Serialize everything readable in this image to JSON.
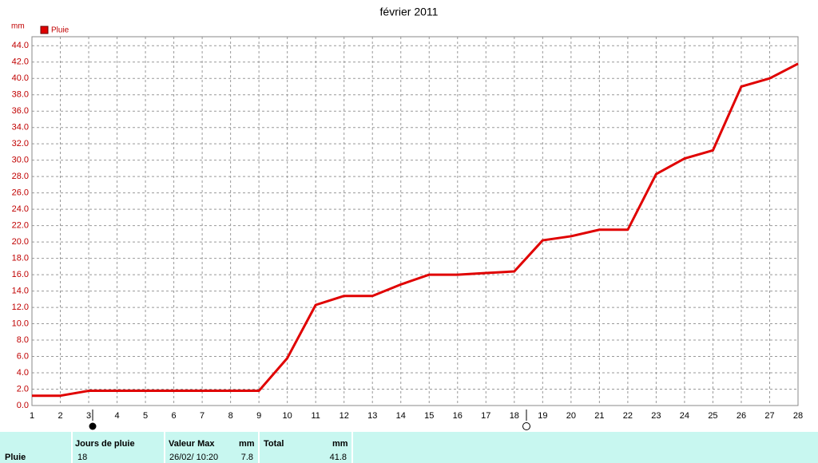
{
  "chart_data": {
    "type": "line",
    "title": "février 2011",
    "ylabel": "mm",
    "x": [
      1,
      2,
      3,
      4,
      5,
      6,
      7,
      8,
      9,
      10,
      11,
      12,
      13,
      14,
      15,
      16,
      17,
      18,
      19,
      20,
      21,
      22,
      23,
      24,
      25,
      26,
      27,
      28
    ],
    "series": [
      {
        "name": "Pluie",
        "color": "#e00000",
        "values": [
          1.2,
          1.2,
          1.8,
          1.8,
          1.8,
          1.8,
          1.8,
          1.8,
          1.8,
          5.8,
          12.3,
          13.4,
          13.4,
          14.8,
          16.0,
          16.0,
          16.2,
          16.4,
          20.2,
          20.7,
          21.5,
          21.5,
          28.3,
          30.2,
          31.2,
          39.0,
          40.0,
          41.8
        ]
      }
    ],
    "xlim": [
      1,
      28
    ],
    "xticks": [
      1,
      2,
      3,
      4,
      5,
      6,
      7,
      8,
      9,
      10,
      11,
      12,
      13,
      14,
      15,
      16,
      17,
      18,
      19,
      20,
      21,
      22,
      23,
      24,
      25,
      26,
      27,
      28
    ],
    "ylim": [
      0,
      45
    ],
    "yticks": [
      {
        "value": 0,
        "label": "0.0"
      },
      {
        "value": 2,
        "label": "2.0"
      },
      {
        "value": 4,
        "label": "4.0"
      },
      {
        "value": 6,
        "label": "6.0"
      },
      {
        "value": 8,
        "label": "8.0"
      },
      {
        "value": 10,
        "label": "10.0"
      },
      {
        "value": 12,
        "label": "12.0"
      },
      {
        "value": 14,
        "label": "14.0"
      },
      {
        "value": 16,
        "label": "16.0"
      },
      {
        "value": 18,
        "label": "18.0"
      },
      {
        "value": 20,
        "label": "20.0"
      },
      {
        "value": 22,
        "label": "22.0"
      },
      {
        "value": 24,
        "label": "24.0"
      },
      {
        "value": 26,
        "label": "26.0"
      },
      {
        "value": 28,
        "label": "28.0"
      },
      {
        "value": 30,
        "label": "30.0"
      },
      {
        "value": 32,
        "label": "32.0"
      },
      {
        "value": 34,
        "label": "34.0"
      },
      {
        "value": 36,
        "label": "36.0"
      },
      {
        "value": 38,
        "label": "38.0"
      },
      {
        "value": 40,
        "label": "40.0"
      },
      {
        "value": 42,
        "label": "42.0"
      },
      {
        "value": 44,
        "label": "44.0"
      }
    ],
    "grid": true,
    "legend": "top-left"
  },
  "table": {
    "headers": [
      "Jours de pluie",
      "Valeur Max",
      "mm",
      "Total",
      "mm"
    ],
    "rows": [
      [
        "Pluie",
        "18",
        "26/02/ 10:20",
        "7.8",
        "41.8"
      ]
    ]
  }
}
